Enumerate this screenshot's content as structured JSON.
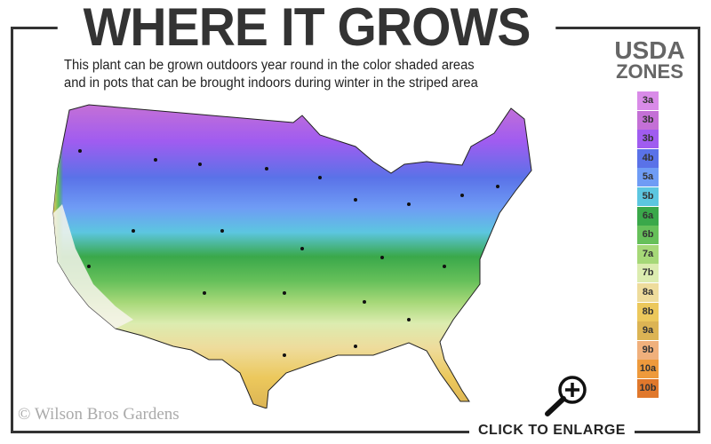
{
  "header": {
    "title": "WHERE IT GROWS",
    "subtitle_line1": "This plant can be grown outdoors year round in the color shaded areas",
    "subtitle_line2": "and in pots that can be brought indoors during winter in the striped area"
  },
  "legend": {
    "title_line1": "USDA",
    "title_line2": "ZONES",
    "zones": [
      {
        "label": "3a",
        "color": "#d98be8"
      },
      {
        "label": "3b",
        "color": "#c470d6"
      },
      {
        "label": "3b",
        "color": "#a05cf0"
      },
      {
        "label": "4b",
        "color": "#5a72e8"
      },
      {
        "label": "5a",
        "color": "#6f9cf5"
      },
      {
        "label": "5b",
        "color": "#5cc6e0"
      },
      {
        "label": "6a",
        "color": "#3aa84a"
      },
      {
        "label": "6b",
        "color": "#66c05a"
      },
      {
        "label": "7a",
        "color": "#a6d878"
      },
      {
        "label": "7b",
        "color": "#dcecb0"
      },
      {
        "label": "8a",
        "color": "#eedc9c"
      },
      {
        "label": "8b",
        "color": "#ecc85c"
      },
      {
        "label": "9a",
        "color": "#dcb454"
      },
      {
        "label": "9b",
        "color": "#f0b07c"
      },
      {
        "label": "10a",
        "color": "#ee9a3c"
      },
      {
        "label": "10b",
        "color": "#e0782c"
      }
    ]
  },
  "map": {
    "region": "United States",
    "frame_color": "#333333"
  },
  "footer": {
    "copyright": "© Wilson Bros Gardens",
    "enlarge_label": "CLICK TO ENLARGE",
    "enlarge_icon": "magnifier-plus-icon"
  }
}
